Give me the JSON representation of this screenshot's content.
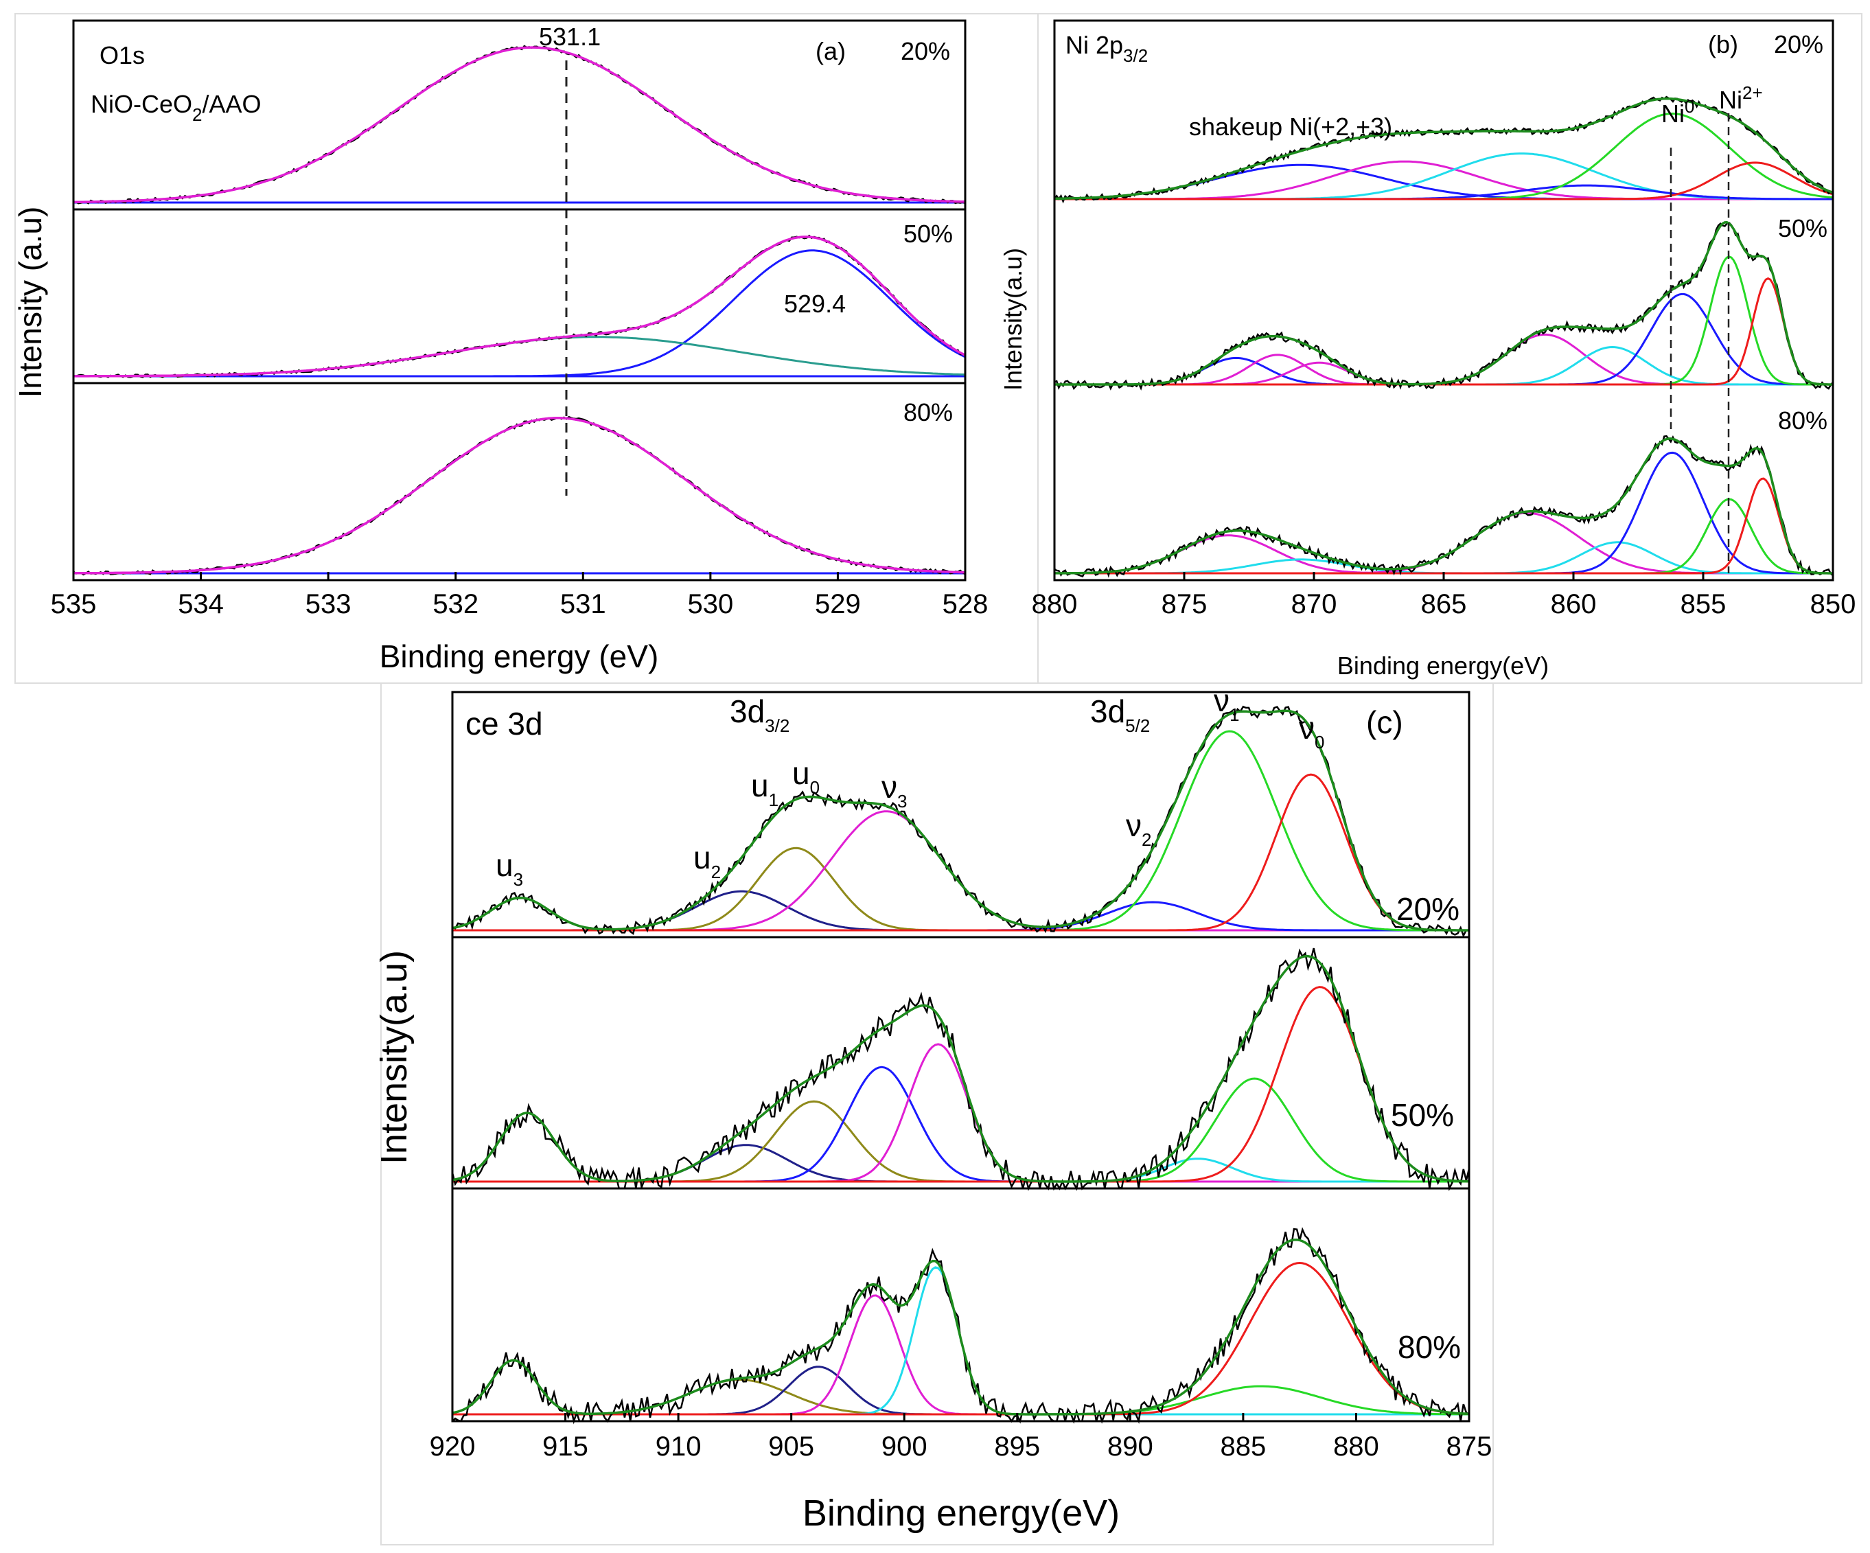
{
  "chart_data": [
    {
      "type": "line",
      "panel": "(a)",
      "title": "O1s",
      "subtitle": "NiO-CeO2/AAO",
      "xlabel": "Binding energy (eV)",
      "ylabel": "Intensity (a.u)",
      "xlim": [
        535,
        528
      ],
      "x_ticks": [
        535,
        534,
        533,
        532,
        531,
        530,
        529,
        528
      ],
      "reference_line": 531.1,
      "annotations": [
        "531.1",
        "529.4"
      ],
      "strips": [
        {
          "label": "20%",
          "components": [
            {
              "color": "#1a1aff",
              "center": 531.4,
              "width": 1.05,
              "amp": 0.9
            }
          ]
        },
        {
          "label": "50%",
          "components": [
            {
              "color": "#1a1aff",
              "center": 529.2,
              "width": 0.62,
              "amp": 0.8
            },
            {
              "color": "#2a9d8f",
              "center": 530.9,
              "width": 1.15,
              "amp": 0.25
            }
          ]
        },
        {
          "label": "80%",
          "components": [
            {
              "color": "#1a1aff",
              "center": 531.2,
              "width": 1.0,
              "amp": 0.86
            }
          ]
        }
      ],
      "envelope_color": "#e01fd3"
    },
    {
      "type": "line",
      "panel": "(b)",
      "title": "Ni 2p3/2",
      "xlabel": "Binding energy(eV)",
      "ylabel": "Intensity(a.u)",
      "xlim": [
        880,
        850
      ],
      "x_ticks": [
        880,
        875,
        870,
        865,
        860,
        855,
        850
      ],
      "reference_lines": [
        856.2,
        854.0
      ],
      "annotations": [
        "shakeup Ni(+2,+3)",
        "Ni0",
        "Ni2+"
      ],
      "strips": [
        {
          "label": "20%",
          "components": [
            {
              "color": "#1a1aff",
              "center": 870.5,
              "width": 3.2,
              "amp": 0.3
            },
            {
              "color": "#e01fd3",
              "center": 866.5,
              "width": 2.8,
              "amp": 0.33
            },
            {
              "color": "#20dcec",
              "center": 862.0,
              "width": 2.8,
              "amp": 0.4
            },
            {
              "color": "#1a1aff",
              "center": 859.5,
              "width": 2.5,
              "amp": 0.12
            },
            {
              "color": "#26d926",
              "center": 856.2,
              "width": 2.2,
              "amp": 0.75
            },
            {
              "color": "#ee1c1c",
              "center": 853.0,
              "width": 1.5,
              "amp": 0.32
            }
          ]
        },
        {
          "label": "50%",
          "components": [
            {
              "color": "#1a1aff",
              "center": 873.0,
              "width": 1.2,
              "amp": 0.17
            },
            {
              "color": "#e01fd3",
              "center": 871.4,
              "width": 1.1,
              "amp": 0.19
            },
            {
              "color": "#e01fd3",
              "center": 869.8,
              "width": 1.1,
              "amp": 0.14
            },
            {
              "color": "#e01fd3",
              "center": 861.1,
              "width": 1.5,
              "amp": 0.32
            },
            {
              "color": "#20dcec",
              "center": 858.5,
              "width": 1.3,
              "amp": 0.24
            },
            {
              "color": "#1a1aff",
              "center": 855.8,
              "width": 1.2,
              "amp": 0.58
            },
            {
              "color": "#26d926",
              "center": 854.0,
              "width": 0.72,
              "amp": 0.82
            },
            {
              "color": "#ee1c1c",
              "center": 852.5,
              "width": 0.58,
              "amp": 0.68
            }
          ]
        },
        {
          "label": "80%",
          "components": [
            {
              "color": "#e01fd3",
              "center": 873.3,
              "width": 1.8,
              "amp": 0.22
            },
            {
              "color": "#20dcec",
              "center": 870.5,
              "width": 1.8,
              "amp": 0.08
            },
            {
              "color": "#e01fd3",
              "center": 861.8,
              "width": 2.0,
              "amp": 0.35
            },
            {
              "color": "#20dcec",
              "center": 858.3,
              "width": 1.4,
              "amp": 0.18
            },
            {
              "color": "#1a1aff",
              "center": 856.2,
              "width": 1.2,
              "amp": 0.7
            },
            {
              "color": "#26d926",
              "center": 854.0,
              "width": 0.85,
              "amp": 0.43
            },
            {
              "color": "#ee1c1c",
              "center": 852.7,
              "width": 0.62,
              "amp": 0.55
            }
          ]
        }
      ],
      "envelope_color": "#1d8c1d"
    },
    {
      "type": "line",
      "panel": "(c)",
      "title": "ce 3d",
      "xlabel": "Binding energy(eV)",
      "ylabel": "Intensity(a.u)",
      "xlim": [
        920,
        875
      ],
      "x_ticks": [
        920,
        915,
        910,
        905,
        900,
        895,
        890,
        885,
        880,
        875
      ],
      "region_labels": [
        "3d3/2",
        "3d5/2"
      ],
      "peak_labels": [
        {
          "text": "u3",
          "x": 917.0
        },
        {
          "text": "u2",
          "x": 908.0
        },
        {
          "text": "u1",
          "x": 905.8
        },
        {
          "text": "u0",
          "x": 904.5
        },
        {
          "text": "ν3",
          "x": 900.8
        },
        {
          "text": "ν2",
          "x": 888.5
        },
        {
          "text": "ν1",
          "x": 885.6
        },
        {
          "text": "ν0",
          "x": 882.0
        }
      ],
      "strips": [
        {
          "label": "20%",
          "components": [
            {
              "color": "#1d8c1d",
              "center": 917.0,
              "width": 1.3,
              "amp": 0.15
            },
            {
              "color": "#20208a",
              "center": 907.2,
              "width": 2.0,
              "amp": 0.18
            },
            {
              "color": "#8f8a1a",
              "center": 904.8,
              "width": 1.7,
              "amp": 0.38
            },
            {
              "color": "#e01fd3",
              "center": 900.8,
              "width": 2.4,
              "amp": 0.55
            },
            {
              "color": "#1a1aff",
              "center": 889.0,
              "width": 2.0,
              "amp": 0.13
            },
            {
              "color": "#26d926",
              "center": 885.6,
              "width": 2.1,
              "amp": 0.92
            },
            {
              "color": "#ee1c1c",
              "center": 882.0,
              "width": 1.55,
              "amp": 0.72
            }
          ]
        },
        {
          "label": "50%",
          "components": [
            {
              "color": "#1d8c1d",
              "center": 916.7,
              "width": 1.2,
              "amp": 0.3
            },
            {
              "color": "#20208a",
              "center": 907.0,
              "width": 1.8,
              "amp": 0.16
            },
            {
              "color": "#8f8a1a",
              "center": 904.0,
              "width": 1.7,
              "amp": 0.35
            },
            {
              "color": "#1a1aff",
              "center": 901.0,
              "width": 1.5,
              "amp": 0.5
            },
            {
              "color": "#e01fd3",
              "center": 898.5,
              "width": 1.3,
              "amp": 0.6
            },
            {
              "color": "#20dcec",
              "center": 887.0,
              "width": 1.5,
              "amp": 0.1
            },
            {
              "color": "#26d926",
              "center": 884.5,
              "width": 1.7,
              "amp": 0.45
            },
            {
              "color": "#ee1c1c",
              "center": 881.6,
              "width": 1.8,
              "amp": 0.85
            }
          ]
        },
        {
          "label": "80%",
          "components": [
            {
              "color": "#1d8c1d",
              "center": 917.3,
              "width": 1.0,
              "amp": 0.25
            },
            {
              "color": "#8f8a1a",
              "center": 907.3,
              "width": 2.2,
              "amp": 0.16
            },
            {
              "color": "#20208a",
              "center": 903.8,
              "width": 1.3,
              "amp": 0.22
            },
            {
              "color": "#e01fd3",
              "center": 901.3,
              "width": 1.1,
              "amp": 0.55
            },
            {
              "color": "#20dcec",
              "center": 898.6,
              "width": 0.95,
              "amp": 0.68
            },
            {
              "color": "#26d926",
              "center": 884.2,
              "width": 2.6,
              "amp": 0.13
            },
            {
              "color": "#ee1c1c",
              "center": 882.5,
              "width": 2.2,
              "amp": 0.7
            }
          ]
        }
      ],
      "envelope_color": "#1d8c1d"
    }
  ],
  "text": {
    "a_title": "O1s",
    "a_sample": "NiO-CeO",
    "a_sample_sub": "2",
    "a_sample_tail": "/AAO",
    "a_panel": "(a)",
    "a_ylabel": "Intensity (a.u)",
    "a_xlabel": "Binding energy (eV)",
    "a_peak1": "531.1",
    "a_peak2": "529.4",
    "a_s1": "20%",
    "a_s2": "50%",
    "a_s3": "80%",
    "b_title": "Ni 2p",
    "b_title_sub": "3/2",
    "b_panel": "(b)",
    "b_ylabel": "Intensity(a.u)",
    "b_xlabel": "Binding energy(eV)",
    "b_shakeup": "shakeup Ni(+2,+3)",
    "b_ni0": "Ni",
    "b_ni0_sup": "0",
    "b_ni2": "Ni",
    "b_ni2_sup": "2+",
    "b_s1": "20%",
    "b_s2": "50%",
    "b_s3": "80%",
    "c_title": "ce 3d",
    "c_panel": "(c)",
    "c_ylabel": "Intensity(a.u)",
    "c_xlabel": "Binding energy(eV)",
    "c_r1": "3d",
    "c_r1_sub": "3/2",
    "c_r2": "3d",
    "c_r2_sub": "5/2",
    "c_u3": "u",
    "c_u3_sub": "3",
    "c_u2": "u",
    "c_u2_sub": "2",
    "c_u1": "u",
    "c_u1_sub": "1",
    "c_u0": "u",
    "c_u0_sub": "0",
    "c_v3": "ν",
    "c_v3_sub": "3",
    "c_v2": "ν",
    "c_v2_sub": "2",
    "c_v1": "ν",
    "c_v1_sub": "1",
    "c_v0": "ν",
    "c_v0_sub": "0",
    "c_s1": "20%",
    "c_s2": "50%",
    "c_s3": "80%"
  }
}
